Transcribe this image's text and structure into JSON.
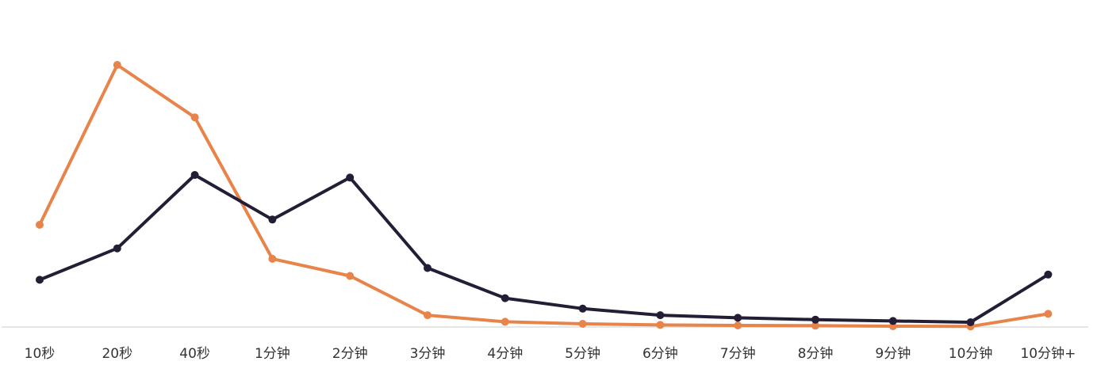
{
  "chart_data": {
    "type": "line",
    "categories": [
      "10秒",
      "20秒",
      "40秒",
      "1分钟",
      "2分钟",
      "3分钟",
      "4分钟",
      "5分钟",
      "6分钟",
      "7分钟",
      "8分钟",
      "9分钟",
      "10分钟",
      "10分钟+"
    ],
    "series": [
      {
        "color": "#E8834A",
        "values": [
          39.0,
          100.0,
          80.0,
          26.0,
          19.5,
          4.5,
          2.0,
          1.2,
          0.8,
          0.6,
          0.5,
          0.3,
          0.2,
          5.0
        ]
      },
      {
        "color": "#231D35",
        "values": [
          18.0,
          30.0,
          58.0,
          41.0,
          57.0,
          22.5,
          11.0,
          7.0,
          4.5,
          3.5,
          2.8,
          2.3,
          1.8,
          20.0
        ]
      }
    ],
    "ylim": [
      0,
      100
    ],
    "grid": false,
    "axis_color": "#DDDDDD"
  }
}
